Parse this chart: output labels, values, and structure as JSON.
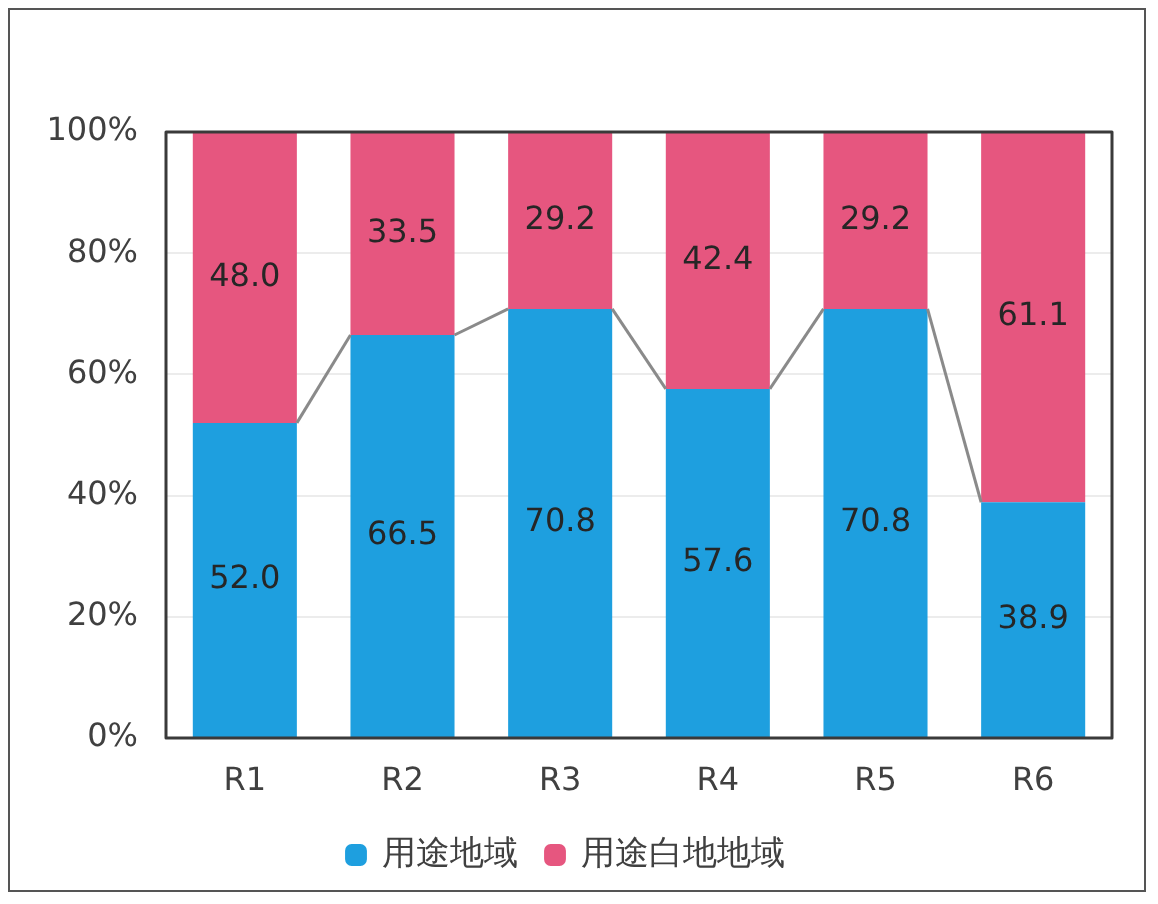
{
  "chart_data": {
    "type": "bar",
    "stacked": true,
    "categories": [
      "R1",
      "R2",
      "R3",
      "R4",
      "R5",
      "R6"
    ],
    "series": [
      {
        "name": "用途地域",
        "color": "#1e9fdf",
        "values": [
          52.0,
          66.5,
          70.8,
          57.6,
          70.8,
          38.9
        ],
        "value_labels": [
          "52.0",
          "66.5",
          "70.8",
          "57.6",
          "70.8",
          "38.9"
        ]
      },
      {
        "name": "用途白地地域",
        "color": "#e6567f",
        "values": [
          48.0,
          33.5,
          29.2,
          42.4,
          29.2,
          61.1
        ],
        "value_labels": [
          "48.0",
          "33.5",
          "29.2",
          "42.4",
          "29.2",
          "61.1"
        ]
      }
    ],
    "ylim": [
      0,
      100
    ],
    "yticks": [
      {
        "value": 0,
        "label": "0%"
      },
      {
        "value": 20,
        "label": "20%"
      },
      {
        "value": 40,
        "label": "40%"
      },
      {
        "value": 60,
        "label": "60%"
      },
      {
        "value": 80,
        "label": "80%"
      },
      {
        "value": 100,
        "label": "100%"
      }
    ],
    "grid": "y",
    "legend": "bottom"
  }
}
